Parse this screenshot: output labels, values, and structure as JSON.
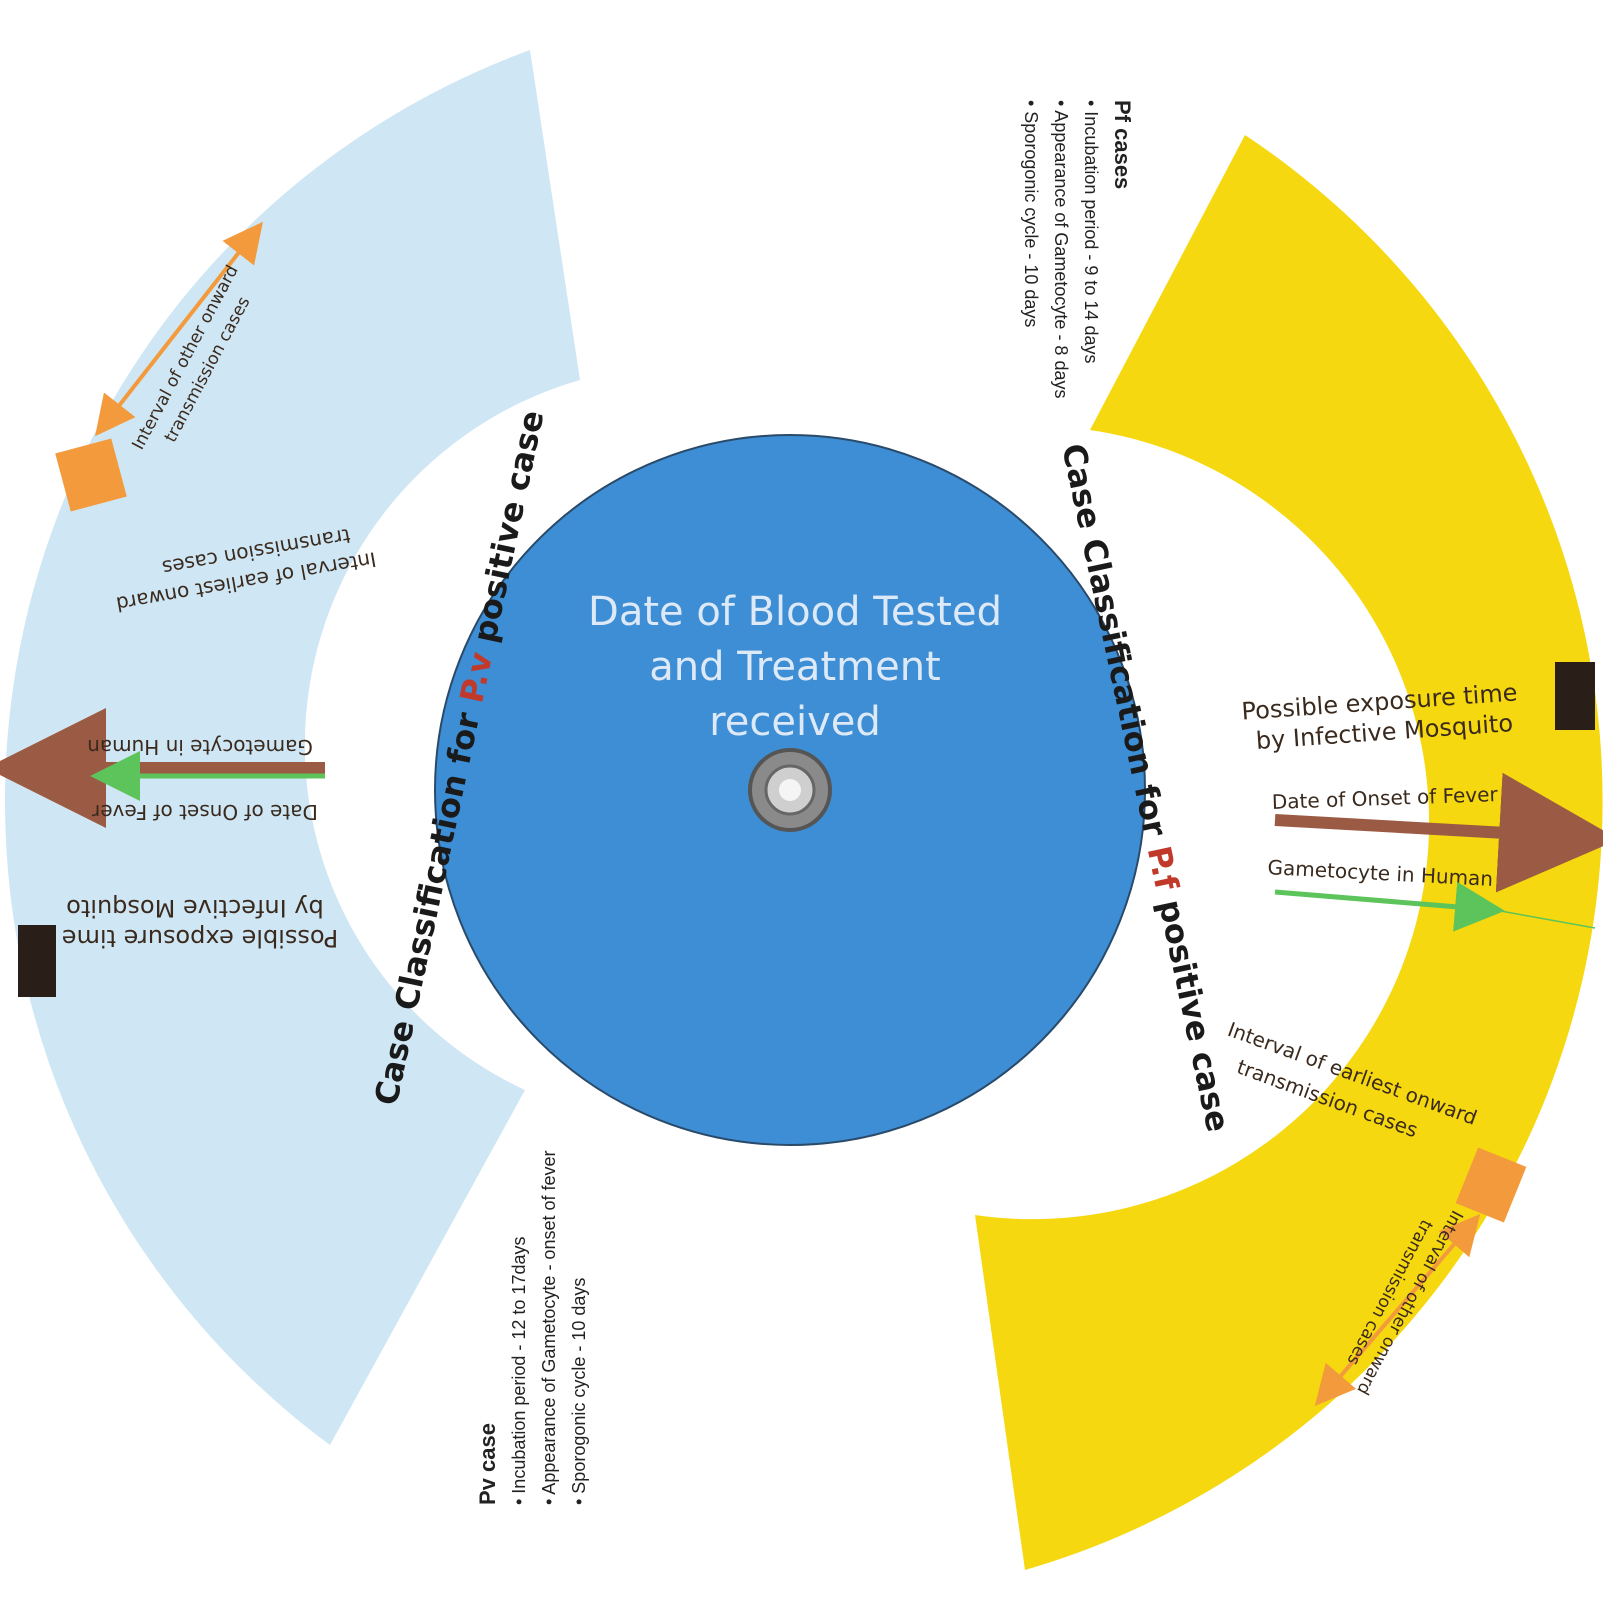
{
  "center": {
    "lines": [
      "Date of Blood Tested",
      "and Treatment",
      "received"
    ]
  },
  "pv": {
    "title_prefix": "Case Classification for ",
    "title_accent": "P.v",
    "title_suffix": " positive case",
    "labels": {
      "other_onward_1": "Interval of other onward",
      "other_onward_2": "transmission cases",
      "earliest_onward_1": "Interval of earliest onward",
      "earliest_onward_2": "transmission cases",
      "gametocyte": "Gametocyte in Human",
      "onset": "Date of Onset of Fever",
      "exposure_1": "Possible exposure time",
      "exposure_2": "by Infective Mosquito"
    },
    "notes": {
      "heading": "Pv case",
      "items": [
        "• Incubation period - 12 to 17days",
        "• Appearance of Gametocyte - onset of fever",
        "• Sporogonic cycle - 10 days"
      ]
    }
  },
  "pf": {
    "title_prefix": "Case Classification for ",
    "title_accent": "P.f",
    "title_suffix": " positive case",
    "labels": {
      "exposure_1": "Possible exposure time",
      "exposure_2": "by Infective Mosquito",
      "onset": "Date of Onset of Fever",
      "gametocyte": "Gametocyte in Human",
      "earliest_onward_1": "Interval of earliest onward",
      "earliest_onward_2": "transmission cases",
      "other_onward_1": "Interval of other onward",
      "other_onward_2": "transmission cases"
    },
    "notes": {
      "heading": "Pf cases",
      "items": [
        "• Incubation period - 9 to 14 days",
        "• Appearance of Gametocyte - 8 days",
        "• Sporogonic cycle - 10 days"
      ]
    }
  },
  "colors": {
    "pv_band": "#cfe6f4",
    "pf_band": "#f5d80f",
    "center_disc": "#3d8ed4",
    "onset_arrow": "#9b5a43",
    "gametocyte_arrow": "#5cc45a",
    "orange_marker": "#f39a3c",
    "dark_marker": "#2a1f18",
    "accent_text": "#c0392b"
  }
}
